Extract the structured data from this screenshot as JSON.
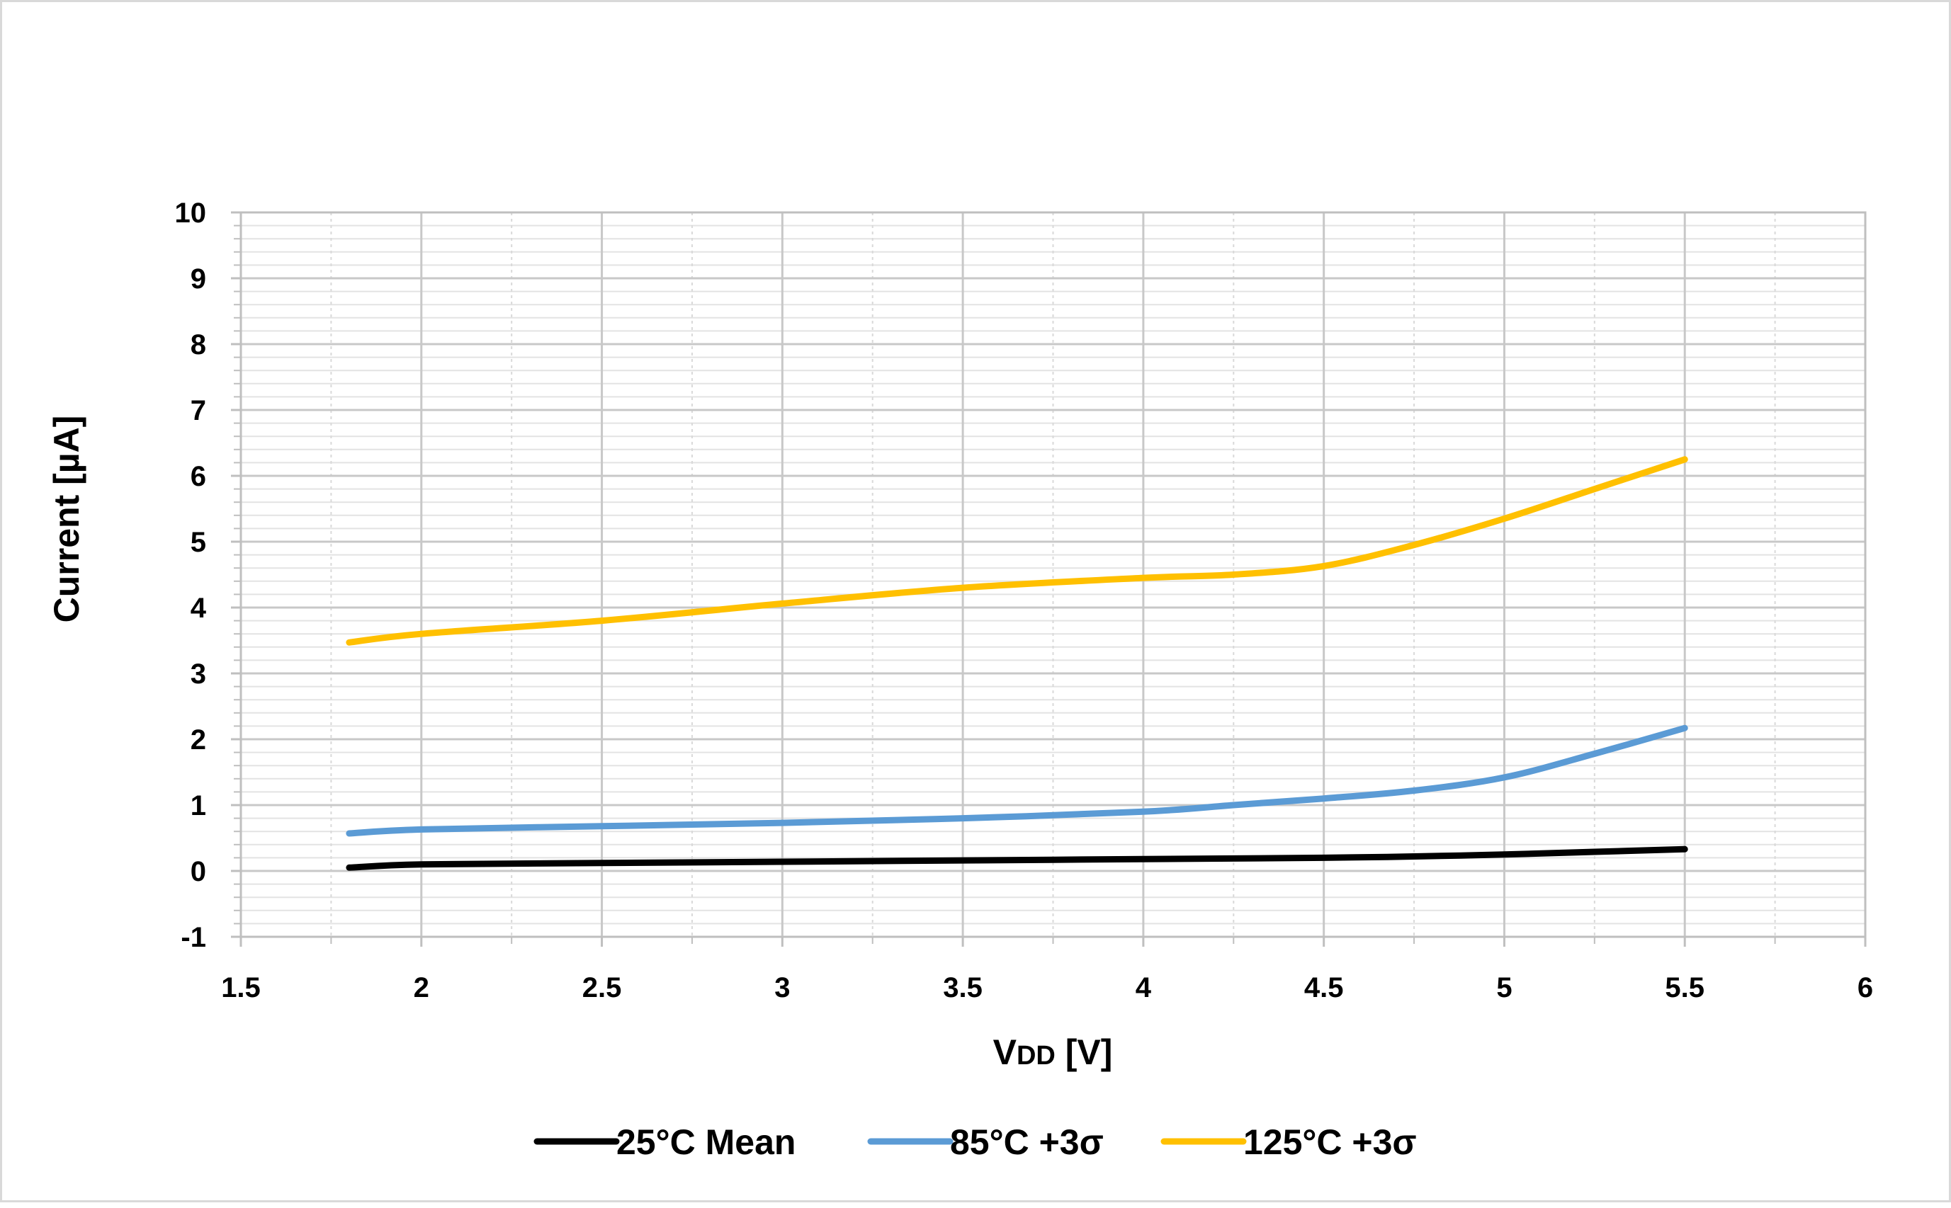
{
  "chart_data": {
    "type": "line",
    "xlabel_main": "V",
    "xlabel_sub": "DD",
    "xlabel_unit": " [V]",
    "ylabel": "Current [µA]",
    "xlim": [
      1.5,
      6
    ],
    "ylim": [
      -1,
      10
    ],
    "x_ticks": [
      1.5,
      2,
      2.5,
      3,
      3.5,
      4,
      4.5,
      5,
      5.5,
      6
    ],
    "y_ticks": [
      -1,
      0,
      1,
      2,
      3,
      4,
      5,
      6,
      7,
      8,
      9,
      10
    ],
    "grid": true,
    "legend_position": "bottom",
    "series": [
      {
        "name": "25°C Mean",
        "color": "#000000",
        "x": [
          1.8,
          2.0,
          2.5,
          3.0,
          3.5,
          4.0,
          4.5,
          4.75,
          5.0,
          5.25,
          5.5
        ],
        "y": [
          0.05,
          0.1,
          0.12,
          0.14,
          0.16,
          0.18,
          0.2,
          0.22,
          0.25,
          0.29,
          0.33
        ]
      },
      {
        "name": "85°C +3σ",
        "color": "#5b9bd5",
        "x": [
          1.8,
          2.0,
          2.5,
          3.0,
          3.5,
          4.0,
          4.25,
          4.5,
          4.75,
          5.0,
          5.25,
          5.5
        ],
        "y": [
          0.57,
          0.63,
          0.68,
          0.73,
          0.8,
          0.9,
          1.0,
          1.1,
          1.22,
          1.42,
          1.78,
          2.17
        ]
      },
      {
        "name": "125°C +3σ",
        "color": "#ffc000",
        "x": [
          1.8,
          2.0,
          2.5,
          3.0,
          3.5,
          4.0,
          4.25,
          4.5,
          4.75,
          5.0,
          5.25,
          5.5
        ],
        "y": [
          3.47,
          3.6,
          3.8,
          4.06,
          4.3,
          4.45,
          4.5,
          4.63,
          4.95,
          5.35,
          5.8,
          6.25
        ]
      }
    ]
  }
}
